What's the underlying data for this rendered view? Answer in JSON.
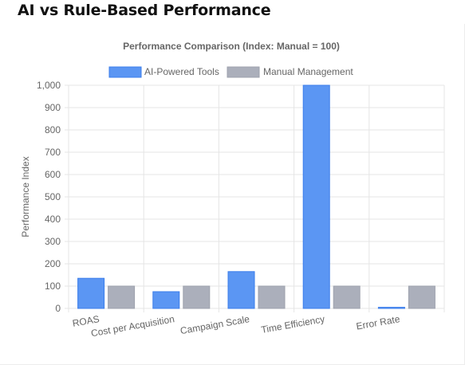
{
  "page": {
    "heading": "AI vs Rule-Based Performance"
  },
  "chart_data": {
    "type": "bar",
    "title": "Performance Comparison (Index: Manual = 100)",
    "ylabel": "Performance Index",
    "xlabel": "",
    "categories": [
      "ROAS",
      "Cost per Acquisition",
      "Campaign Scale",
      "Time Efficiency",
      "Error Rate"
    ],
    "series": [
      {
        "name": "AI-Powered Tools",
        "values": [
          135,
          75,
          165,
          1000,
          5
        ],
        "color": "#5b96f3",
        "border": "#3b7deb"
      },
      {
        "name": "Manual Management",
        "values": [
          100,
          100,
          100,
          100,
          100
        ],
        "color": "#abafbb",
        "border": "#9ea2ae"
      }
    ],
    "ylim": [
      0,
      1000
    ],
    "yticks": [
      0,
      100,
      200,
      300,
      400,
      500,
      600,
      700,
      800,
      900,
      1000
    ],
    "ytick_labels": [
      "0",
      "100",
      "200",
      "300",
      "400",
      "500",
      "600",
      "700",
      "800",
      "900",
      "1,000"
    ],
    "grid": true,
    "legend_position": "top"
  }
}
